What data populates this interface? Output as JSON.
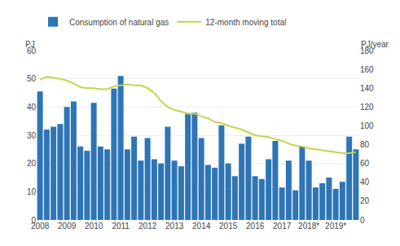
{
  "chart_data": {
    "type": "bar",
    "categories": [
      "2008",
      null,
      null,
      null,
      "2009",
      null,
      null,
      null,
      "2010",
      null,
      null,
      null,
      "2011",
      null,
      null,
      null,
      "2012",
      null,
      null,
      null,
      "2013",
      null,
      null,
      null,
      "2014",
      null,
      null,
      null,
      "2015",
      null,
      null,
      null,
      "2016",
      null,
      null,
      null,
      "2017",
      null,
      null,
      null,
      "2018*",
      null,
      null,
      null,
      "2019*",
      null,
      null,
      null
    ],
    "series": [
      {
        "name": "Consumption of natural gas",
        "type": "bar",
        "color": "#2e75b6",
        "values": [
          45.5,
          32.0,
          33.0,
          34.0,
          40.0,
          42.0,
          26.0,
          24.5,
          41.5,
          26.0,
          25.0,
          46.5,
          51.0,
          25.0,
          29.5,
          21.0,
          29.0,
          21.5,
          20.0,
          33.0,
          21.0,
          19.0,
          37.5,
          38.0,
          29.0,
          19.5,
          18.5,
          33.5,
          20.0,
          15.5,
          27.0,
          29.5,
          15.5,
          14.5,
          21.5,
          28.0,
          11.5,
          21.0,
          10.5,
          26.0,
          21.0,
          11.5,
          13.0,
          15.0,
          11.0,
          13.5,
          29.5,
          25.0
        ]
      },
      {
        "name": "12-month moving total",
        "type": "line",
        "color": "#c5d44e",
        "axis": "y2",
        "values": [
          149,
          152,
          151,
          150,
          148,
          145,
          141,
          140,
          140,
          139,
          139,
          142,
          143,
          144,
          143,
          143,
          140,
          135,
          126,
          120,
          117,
          115,
          113,
          113,
          110,
          108,
          104,
          103,
          100,
          98,
          96,
          93,
          90,
          89,
          88,
          86,
          84,
          81,
          79,
          78,
          76,
          75,
          74,
          73,
          72,
          71,
          71,
          72
        ]
      }
    ],
    "ylabel": "PJ",
    "y2label": "PJ/year",
    "ylim": [
      0,
      60
    ],
    "yticks": [
      0,
      10,
      20,
      30,
      40,
      50,
      60
    ],
    "y2lim": [
      0,
      180
    ],
    "y2ticks": [
      0,
      20,
      40,
      60,
      80,
      100,
      120,
      140,
      160,
      180
    ],
    "grid": true,
    "legend": "upper left"
  }
}
